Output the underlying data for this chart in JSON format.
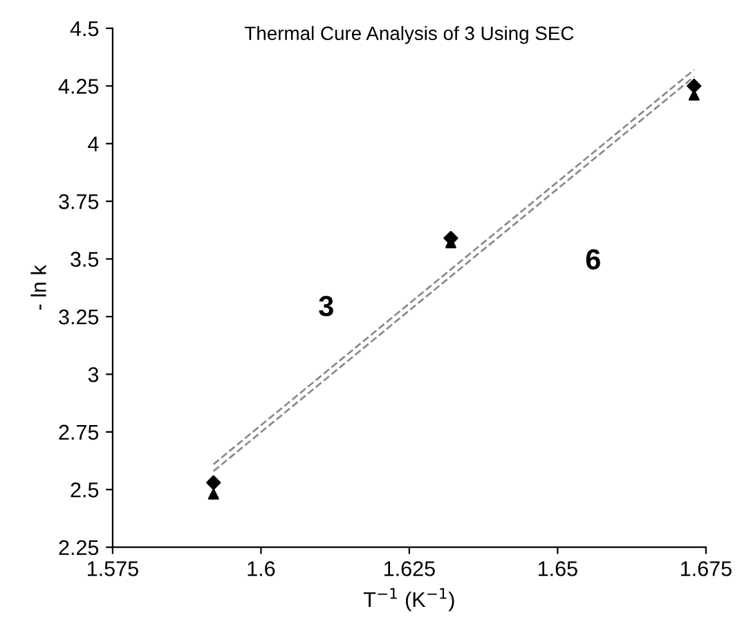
{
  "chart_data": {
    "type": "scatter",
    "title": "Thermal Cure Analysis of 3 Using SEC",
    "xlabel": "T$^{−1}$ (K$^{−1}$)",
    "ylabel": "- ln k",
    "series": [
      {
        "marker": "diamond",
        "color": "#000000",
        "x": [
          1.592,
          1.632,
          1.673
        ],
        "values": [
          2.53,
          3.59,
          4.25
        ]
      },
      {
        "marker": "triangle",
        "color": "#000000",
        "x": [
          1.592,
          1.632,
          1.673
        ],
        "values": [
          2.48,
          3.57,
          4.21
        ]
      },
      {
        "type": "line",
        "line_style": "dashed",
        "color": "#8c8c8c",
        "x": [
          1.592,
          1.673
        ],
        "values": [
          2.61,
          4.32
        ]
      },
      {
        "type": "line",
        "line_style": "dashed",
        "color": "#8c8c8c",
        "x": [
          1.592,
          1.673
        ],
        "values": [
          2.58,
          4.29
        ]
      }
    ],
    "annotations": [
      "3",
      "6"
    ],
    "xlim": [
      1.575,
      1.675
    ],
    "xticks": [
      1.575,
      1.6,
      1.625,
      1.65,
      1.675
    ],
    "ylim": [
      2.25,
      4.5
    ],
    "yticks": [
      2.25,
      2.5,
      2.75,
      3,
      3.25,
      3.5,
      3.75,
      4,
      4.25,
      4.5
    ],
    "grid": false,
    "legend": false
  }
}
